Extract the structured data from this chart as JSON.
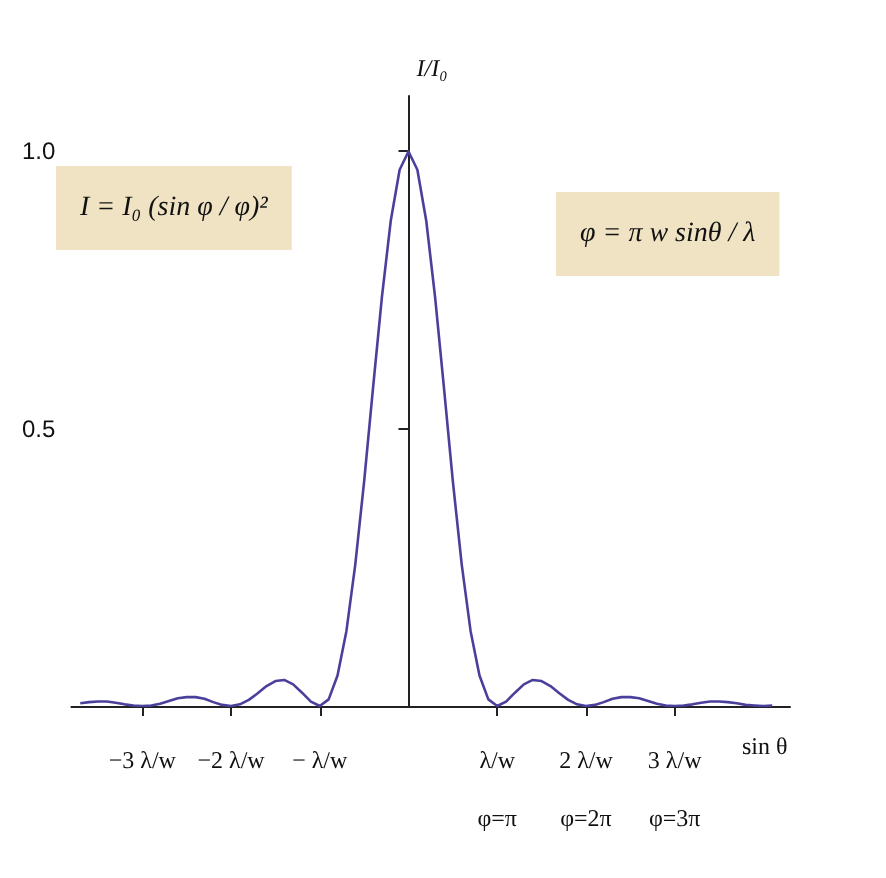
{
  "chart_data": {
    "type": "line",
    "xlabel": "sin θ",
    "ylabel": "I/I₀",
    "x": [
      -3.7,
      -3.6,
      -3.5,
      -3.4,
      -3.3,
      -3.2,
      -3.1,
      -3.0,
      -2.9,
      -2.8,
      -2.7,
      -2.6,
      -2.5,
      -2.4,
      -2.3,
      -2.2,
      -2.1,
      -2.0,
      -1.9,
      -1.8,
      -1.7,
      -1.6,
      -1.5,
      -1.4,
      -1.3,
      -1.2,
      -1.1,
      -1.0,
      -0.9,
      -0.8,
      -0.7,
      -0.6,
      -0.5,
      -0.4,
      -0.3,
      -0.2,
      -0.1,
      0,
      0.1,
      0.2,
      0.3,
      0.4,
      0.5,
      0.6,
      0.7,
      0.8,
      0.9,
      1.0,
      1.1,
      1.2,
      1.3,
      1.4,
      1.5,
      1.6,
      1.7,
      1.8,
      1.9,
      2.0,
      2.1,
      2.2,
      2.3,
      2.4,
      2.5,
      2.6,
      2.7,
      2.8,
      2.9,
      3.0,
      3.1,
      3.2,
      3.3,
      3.4,
      3.5,
      3.6,
      3.7,
      3.8,
      3.9,
      4.0,
      4.1
    ],
    "values": [
      0.005,
      0.007,
      0.008,
      0.008,
      0.006,
      0.003,
      0.001,
      0,
      0.001,
      0.004,
      0.009,
      0.014,
      0.016,
      0.016,
      0.013,
      0.007,
      0.002,
      0,
      0.003,
      0.011,
      0.023,
      0.036,
      0.045,
      0.047,
      0.039,
      0.024,
      0.008,
      0,
      0.012,
      0.055,
      0.135,
      0.255,
      0.405,
      0.573,
      0.737,
      0.875,
      0.967,
      1,
      0.967,
      0.875,
      0.737,
      0.573,
      0.405,
      0.255,
      0.135,
      0.055,
      0.012,
      0,
      0.008,
      0.024,
      0.039,
      0.047,
      0.045,
      0.036,
      0.023,
      0.011,
      0.003,
      0,
      0.002,
      0.007,
      0.013,
      0.016,
      0.016,
      0.014,
      0.009,
      0.004,
      0.001,
      0,
      0.001,
      0.003,
      0.006,
      0.008,
      0.008,
      0.007,
      0.005,
      0.002,
      0.001,
      0,
      0.001
    ],
    "color": "#4b3f9c",
    "marker": "none",
    "line_style": "solid",
    "grid": false,
    "xlim": [
      -3.8,
      4.3
    ],
    "xticks": [
      {
        "value": -3,
        "label": "−3 λ/w"
      },
      {
        "value": -2,
        "label": "−2 λ/w"
      },
      {
        "value": -1,
        "label": "− λ/w"
      },
      {
        "value": 1,
        "label": "λ/w"
      },
      {
        "value": 2,
        "label": "2 λ/w"
      },
      {
        "value": 3,
        "label": "3 λ/w"
      }
    ],
    "ylim": [
      0,
      1.1
    ],
    "yticks": [
      0.5,
      {
        "value": 1,
        "label": "1.0"
      }
    ],
    "annotations": [
      "I = I₀ (sin φ / φ)²",
      "φ = π w sinθ / λ",
      "φ=π",
      "φ=2π",
      "φ=3π"
    ]
  }
}
